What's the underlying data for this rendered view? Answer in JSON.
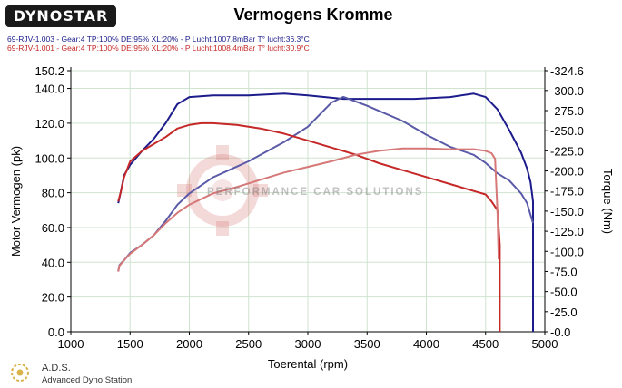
{
  "header": {
    "logo_text": "DYNOSTAR",
    "title": "Vermogens Kromme",
    "run1": "69-RJV-1.003 - Gear:4 TP:100% DE:95% XL:20%   - P Lucht:1007.8mBar T° lucht:36.3°C",
    "run2": "69-RJV-1.001 - Gear:4 TP:100% DE:95% XL:20%   - P Lucht:1008.4mBar T° lucht:30.9°C"
  },
  "watermark": "PERFORMANCE CAR SOLUTIONS",
  "footer": {
    "ads": "A.D.S.",
    "ads_full": "Advanced Dyno Station"
  },
  "colors": {
    "run1_power": "#1c1c8c",
    "run1_torque": "#5a5aa8",
    "run2_power": "#c62828",
    "run2_torque": "#d67878",
    "grid": "#cfe3cf"
  },
  "chart_data": {
    "type": "line",
    "title": "Vermogens Kromme",
    "xlabel": "Toerental (rpm)",
    "ylabel": "Motor Vermogen (pk)",
    "y2label": "Torque (Nm)",
    "xlim": [
      1000,
      5000
    ],
    "ylim": [
      0,
      150.2
    ],
    "y2lim": [
      0,
      324.6
    ],
    "x_ticks": [
      1000,
      1500,
      2000,
      2500,
      3000,
      3500,
      4000,
      4500,
      5000
    ],
    "x_tick_labels": [
      "1000",
      "1500",
      "2000",
      "2500",
      "3000",
      "3500",
      "4000",
      "4500",
      "5000"
    ],
    "y_ticks": [
      0,
      20,
      40,
      60,
      80,
      100,
      120,
      140,
      150.2
    ],
    "y_tick_labels": [
      "0.0",
      "20.0",
      "40.0",
      "60.0",
      "80.0",
      "100.0",
      "120.0",
      "140.0",
      "150.2"
    ],
    "y2_ticks": [
      0,
      25,
      50,
      75,
      100,
      125,
      150,
      175,
      200,
      225,
      250,
      275,
      300,
      324.6
    ],
    "y2_tick_labels": [
      "-0.0",
      "-25.0",
      "-50.0",
      "-75.0",
      "-100.0",
      "-125.0",
      "-150.0",
      "-175.0",
      "-200.0",
      "-225.0",
      "-250.0",
      "-275.0",
      "-300.0",
      "-324.6"
    ],
    "grid": true,
    "series": [
      {
        "axis": "left",
        "color": "#1c1c8c",
        "x": [
          1400,
          1420,
          1450,
          1500,
          1600,
          1700,
          1800,
          1900,
          2000,
          2200,
          2500,
          2800,
          3000,
          3300,
          3600,
          3900,
          4200,
          4400,
          4500,
          4600,
          4700,
          4800,
          4850,
          4880,
          4900,
          4900
        ],
        "y": [
          74,
          80,
          90,
          96,
          104,
          111,
          120,
          131,
          135,
          136,
          136,
          137,
          136,
          134,
          134,
          134,
          135,
          137,
          135,
          128,
          116,
          103,
          94,
          86,
          75,
          0
        ]
      },
      {
        "axis": "right",
        "color": "#5a5aa8",
        "x": [
          1400,
          1410,
          1450,
          1500,
          1600,
          1700,
          1800,
          1900,
          2000,
          2200,
          2500,
          2800,
          3000,
          3200,
          3300,
          3500,
          3800,
          4000,
          4200,
          4400,
          4500,
          4600,
          4700,
          4800,
          4850,
          4900
        ],
        "y": [
          75,
          83,
          89,
          98,
          108,
          120,
          138,
          158,
          172,
          192,
          212,
          236,
          255,
          285,
          292,
          281,
          262,
          245,
          230,
          220,
          210,
          197,
          188,
          172,
          160,
          135
        ]
      },
      {
        "axis": "left",
        "color": "#c62828",
        "x": [
          1400,
          1420,
          1450,
          1500,
          1600,
          1700,
          1800,
          1900,
          2000,
          2100,
          2200,
          2400,
          2600,
          2800,
          3000,
          3200,
          3400,
          3600,
          3800,
          4000,
          4200,
          4400,
          4500,
          4550,
          4600,
          4610,
          4620,
          4620
        ],
        "y": [
          75,
          80,
          89,
          98,
          104,
          108,
          112,
          117,
          119,
          120,
          120,
          119,
          117,
          114,
          110,
          106,
          102,
          97,
          93,
          89,
          85,
          81,
          79,
          75,
          70,
          60,
          50,
          0
        ]
      },
      {
        "axis": "right",
        "color": "#d67878",
        "x": [
          1400,
          1410,
          1450,
          1500,
          1600,
          1700,
          1800,
          1900,
          2000,
          2200,
          2400,
          2600,
          2800,
          3000,
          3200,
          3400,
          3600,
          3800,
          4000,
          4200,
          4400,
          4500,
          4550,
          4580,
          4600,
          4610
        ],
        "y": [
          75,
          82,
          89,
          97,
          108,
          120,
          135,
          148,
          158,
          172,
          180,
          189,
          198,
          205,
          212,
          220,
          225,
          228,
          228,
          227,
          227,
          225,
          222,
          215,
          150,
          90
        ]
      }
    ]
  }
}
